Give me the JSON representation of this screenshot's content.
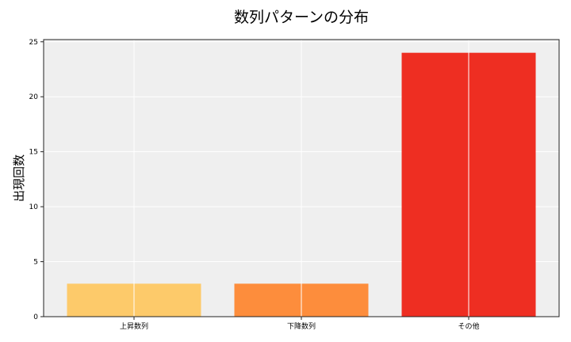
{
  "chart_data": {
    "type": "bar",
    "title": "数列パターンの分布",
    "xlabel": "",
    "ylabel": "出現回数",
    "categories": [
      "上昇数列",
      "下降数列",
      "その他"
    ],
    "values": [
      3,
      3,
      24
    ],
    "colors": [
      "#FDCA6A",
      "#FD8D3C",
      "#EE2E22"
    ],
    "ylim": [
      0,
      25.2
    ],
    "yticks": [
      0,
      5,
      10,
      15,
      20,
      25
    ],
    "grid": true,
    "background": "#EFEFEF"
  }
}
